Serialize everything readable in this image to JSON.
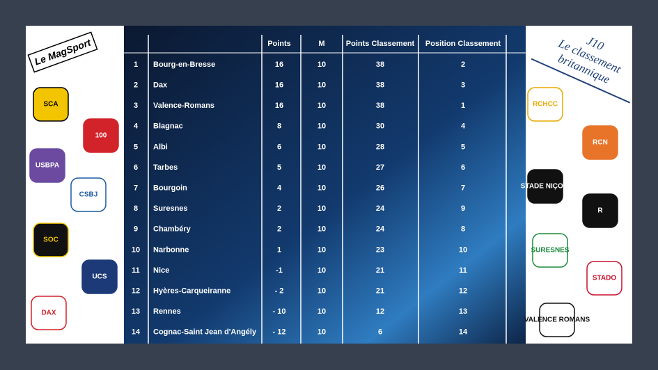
{
  "brand": "Le MagSport",
  "title": [
    "J10",
    "Le classement",
    "britannique"
  ],
  "table": {
    "header": [
      "Points",
      "M",
      "Points Classement",
      "Position Classement"
    ],
    "rows": [
      [
        "1",
        "Bourg-en-Bresse",
        "16",
        "10",
        "38",
        "2"
      ],
      [
        "2",
        "Dax",
        "16",
        "10",
        "38",
        "3"
      ],
      [
        "3",
        "Valence-Romans",
        "16",
        "10",
        "38",
        "1"
      ],
      [
        "4",
        "Blagnac",
        "8",
        "10",
        "30",
        "4"
      ],
      [
        "5",
        "Albi",
        "6",
        "10",
        "28",
        "5"
      ],
      [
        "6",
        "Tarbes",
        "5",
        "10",
        "27",
        "6"
      ],
      [
        "7",
        "Bourgoin",
        "4",
        "10",
        "26",
        "7"
      ],
      [
        "8",
        "Suresnes",
        "2",
        "10",
        "24",
        "9"
      ],
      [
        "9",
        "Chambéry",
        "2",
        "10",
        "24",
        "8"
      ],
      [
        "10",
        "Narbonne",
        "1",
        "10",
        "23",
        "10"
      ],
      [
        "11",
        "Nice",
        "-1",
        "10",
        "21",
        "11"
      ],
      [
        "12",
        "Hyères-Carqueiranne",
        "- 2",
        "10",
        "21",
        "12"
      ],
      [
        "13",
        "Rennes",
        "- 10",
        "10",
        "12",
        "13"
      ],
      [
        "14",
        "Cognac-Saint Jean d'Angély",
        "- 12",
        "10",
        "6",
        "14"
      ]
    ]
  },
  "logos_left": [
    "SCA",
    "100",
    "USBPA",
    "CSBJ",
    "SOC",
    "UCS",
    "DAX"
  ],
  "logos_right": [
    "RCHCC",
    "RCN",
    "STADE NIÇOIS",
    "R",
    "SURESNES",
    "STADO",
    "VALENCE ROMANS"
  ]
}
